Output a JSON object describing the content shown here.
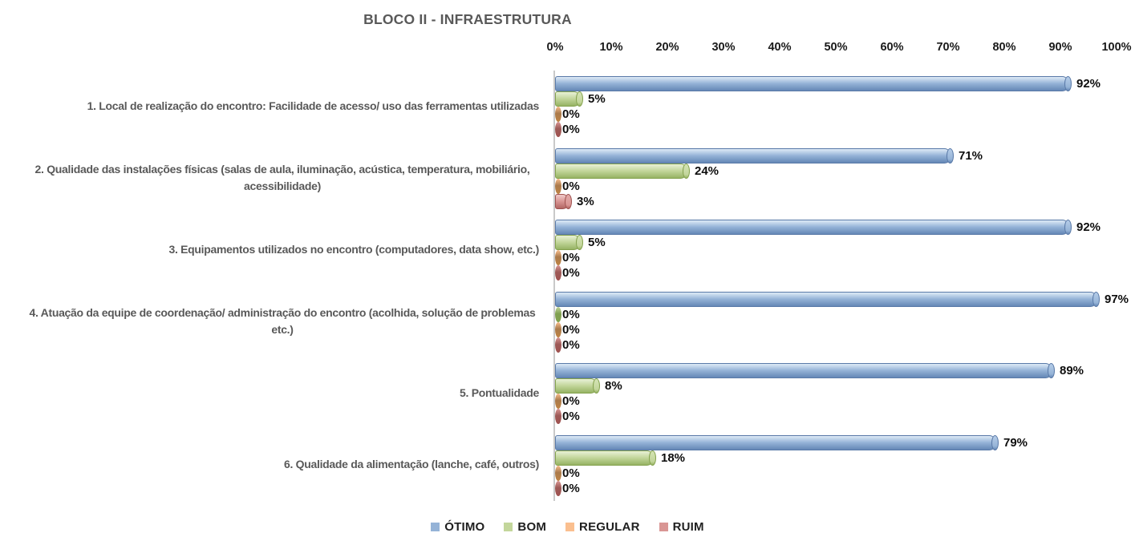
{
  "chart_data": {
    "type": "bar",
    "orientation": "horizontal",
    "style": "3d-cylinder",
    "title": "BLOCO II - INFRAESTRUTURA",
    "value_suffix": "%",
    "xlim": [
      0,
      100
    ],
    "x_tick_labels": [
      "0%",
      "10%",
      "20%",
      "30%",
      "40%",
      "50%",
      "60%",
      "70%",
      "80%",
      "90%",
      "100%"
    ],
    "gridlines": false,
    "legend_position": "bottom",
    "categories": [
      "1. Local de realização do encontro: Facilidade de acesso/ uso das ferramentas utilizadas",
      "2. Qualidade das instalações físicas (salas de aula, iluminação, acústica, temperatura, mobiliário, acessibilidade)",
      "3. Equipamentos utilizados no encontro (computadores, data show, etc.)",
      "4. Atuação da equipe de coordenação/ administração do encontro (acolhida, solução de problemas etc.)",
      "5. Pontualidade",
      "6. Qualidade da alimentação (lanche, café, outros)"
    ],
    "series": [
      {
        "name": "ÓTIMO",
        "values": [
          92,
          71,
          92,
          97,
          89,
          79
        ],
        "colors": {
          "base": "#95b3d7",
          "light": "#d6e4f3",
          "dark": "#6588b6",
          "border": "#5a7aa8",
          "cap": "#b1c9e6",
          "zero": "#7b9cc8"
        }
      },
      {
        "name": "BOM",
        "values": [
          5,
          24,
          5,
          0,
          8,
          18
        ],
        "colors": {
          "base": "#c3d69b",
          "light": "#e4eed0",
          "dark": "#97b364",
          "border": "#84a24e",
          "cap": "#d2e2b2",
          "zero": "#7f9f50"
        }
      },
      {
        "name": "REGULAR",
        "values": [
          0,
          0,
          0,
          0,
          0,
          0
        ],
        "colors": {
          "base": "#fabf8f",
          "light": "#fcd9ba",
          "dark": "#cf9258",
          "border": "#c08343",
          "cap": "#fbcda6",
          "zero": "#aa7a4b"
        }
      },
      {
        "name": "RUIM",
        "values": [
          0,
          3,
          0,
          0,
          0,
          0
        ],
        "colors": {
          "base": "#d99694",
          "light": "#eec5c4",
          "dark": "#b26663",
          "border": "#a05250",
          "cap": "#e2a7a5",
          "zero": "#9d5a57"
        }
      }
    ]
  },
  "colors": {
    "background": "#ffffff",
    "title": "#595959",
    "axis_line": "#c9c9c9",
    "tick_label": "#1a1a1a",
    "category_label": "#595959",
    "value_label": "#0d0d0d",
    "legend_label": "#1f1f1f"
  }
}
